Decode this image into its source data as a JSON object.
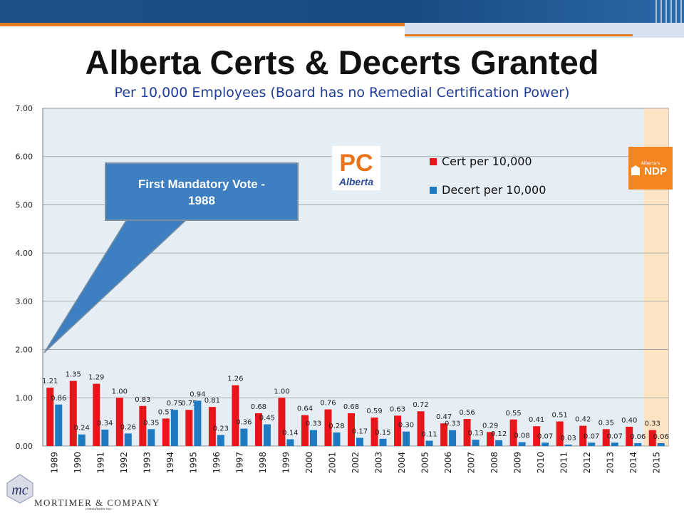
{
  "slide": {
    "title": "Alberta Certs & Decerts Granted",
    "subtitle": "Per 10,000 Employees (Board has no Remedial Certification Power)",
    "callout": "First Mandatory Vote - 1988",
    "pc_logo": {
      "top": "PC",
      "bottom": "Alberta",
      "color": "#e8731c"
    },
    "ndp_logo": {
      "top": "Alberta's",
      "bottom": "NDP",
      "color": "#f5861f"
    },
    "company": {
      "name": "MORTIMER & COMPANY",
      "sub": "consultants inc.",
      "initials": "mc"
    }
  },
  "chart_data": {
    "type": "bar",
    "categories": [
      "1989",
      "1990",
      "1991",
      "1992",
      "1993",
      "1994",
      "1995",
      "1996",
      "1997",
      "1998",
      "1999",
      "2000",
      "2001",
      "2002",
      "2003",
      "2004",
      "2005",
      "2006",
      "2007",
      "2008",
      "2009",
      "2010",
      "2011",
      "2012",
      "2013",
      "2014",
      "2015"
    ],
    "series": [
      {
        "name": "Cert per 10,000",
        "color": "#e8161b",
        "values": [
          1.21,
          1.35,
          1.29,
          1.0,
          0.83,
          0.57,
          0.75,
          0.81,
          1.26,
          0.68,
          1.0,
          0.64,
          0.76,
          0.68,
          0.59,
          0.63,
          0.72,
          0.47,
          0.56,
          0.29,
          0.55,
          0.41,
          0.51,
          0.42,
          0.35,
          0.4,
          0.33
        ]
      },
      {
        "name": "Decert per 10,000",
        "color": "#1f7bc1",
        "values": [
          0.86,
          0.24,
          0.34,
          0.26,
          0.35,
          0.75,
          0.94,
          0.23,
          0.36,
          0.45,
          0.14,
          0.33,
          0.28,
          0.17,
          0.15,
          0.3,
          0.11,
          0.33,
          0.13,
          0.12,
          0.08,
          0.07,
          0.03,
          0.07,
          0.07,
          0.06,
          0.06
        ]
      }
    ],
    "ylim": [
      0,
      7
    ],
    "yticks": [
      "0.00",
      "1.00",
      "2.00",
      "3.00",
      "4.00",
      "5.00",
      "6.00",
      "7.00"
    ],
    "label_decimals": 2,
    "grid": true,
    "legend": "top-right",
    "plot_bg": "#e6eef5",
    "highlight": {
      "category": "2015",
      "color": "#fce4c4"
    }
  }
}
